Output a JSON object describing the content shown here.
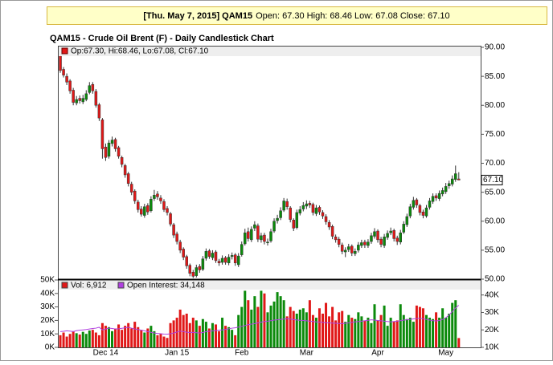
{
  "header": {
    "title": "[Thu. May 7, 2015] QAM15",
    "text": "Open: 67.30 High: 68.46 Low: 67.08 Close: 67.10"
  },
  "chart_data": [
    {
      "type": "candlestick",
      "title": "QAM15 - Crude Oil Brent (F) - Daily Candlestick Chart",
      "legend": "Op:67.30, Hi:68.46, Lo:67.08, Cl:67.10",
      "price_tag": "67.10",
      "up_color": "#0b8a0b",
      "down_color": "#e01818",
      "ylim": [
        50,
        90
      ],
      "yticks": [
        {
          "value": 50,
          "label": "50.00"
        },
        {
          "value": 55,
          "label": "55.00"
        },
        {
          "value": 60,
          "label": "60.00"
        },
        {
          "value": 65,
          "label": "65.00"
        },
        {
          "value": 70,
          "label": "70.00"
        },
        {
          "value": 75,
          "label": "75.00"
        },
        {
          "value": 80,
          "label": "80.00"
        },
        {
          "value": 85,
          "label": "85.00"
        },
        {
          "value": 90,
          "label": "90.00"
        }
      ],
      "grid": false,
      "open": [
        88.5,
        86.2,
        85.0,
        84.2,
        82.6,
        80.4,
        81.2,
        80.6,
        81.0,
        82.2,
        83.6,
        82.4,
        80.1,
        77.5,
        72.8,
        71.2,
        73.4,
        74.1,
        72.7,
        71.0,
        69.6,
        68.2,
        66.4,
        65.2,
        63.3,
        62.1,
        61.0,
        62.7,
        61.8,
        63.9,
        64.7,
        64.0,
        63.4,
        62.2,
        61.3,
        59.4,
        57.8,
        56.4,
        55.2,
        53.9,
        52.4,
        51.2,
        50.6,
        52.2,
        51.7,
        53.6,
        54.9,
        53.7,
        54.7,
        53.1,
        52.9,
        53.7,
        52.8,
        53.9,
        54.2,
        52.5,
        54.2,
        56.1,
        58.2,
        56.8,
        58.8,
        59.2,
        56.8,
        57.6,
        56.3,
        56.6,
        58.3,
        60.1,
        60.6,
        61.9,
        63.4,
        62.3,
        60.2,
        58.9,
        61.4,
        62.1,
        62.6,
        63.1,
        62.9,
        61.3,
        62.4,
        61.5,
        60.8,
        59.8,
        59.1,
        57.3,
        56.9,
        55.9,
        54.7,
        55.1,
        55.7,
        54.4,
        55.0,
        55.8,
        56.4,
        55.8,
        56.5,
        57.4,
        58.3,
        56.9,
        55.8,
        57.2,
        58.0,
        58.4,
        57.1,
        56.4,
        58.1,
        59.4,
        60.9,
        62.4,
        63.7,
        62.7,
        61.6,
        60.9,
        62.4,
        63.4,
        64.4,
        63.9,
        64.7,
        65.1,
        66.1,
        66.4,
        67.2,
        67.3
      ],
      "high": [
        89.0,
        86.6,
        85.5,
        84.5,
        83.0,
        81.6,
        81.7,
        81.8,
        82.6,
        84.0,
        84.0,
        82.8,
        80.4,
        77.8,
        73.4,
        74.0,
        74.6,
        74.4,
        73.0,
        71.3,
        69.9,
        68.5,
        66.8,
        65.5,
        63.7,
        62.6,
        63.0,
        63.1,
        64.3,
        65.4,
        65.2,
        64.5,
        63.8,
        62.6,
        61.6,
        59.7,
        58.2,
        56.8,
        55.5,
        54.2,
        52.7,
        51.6,
        52.5,
        52.6,
        54.0,
        55.3,
        55.2,
        55.0,
        55.0,
        53.5,
        54.1,
        54.0,
        54.3,
        54.6,
        54.5,
        54.5,
        56.5,
        58.7,
        58.9,
        59.1,
        60.0,
        59.6,
        58.0,
        58.0,
        57.0,
        58.7,
        60.5,
        61.1,
        62.4,
        64.0,
        63.9,
        62.6,
        60.5,
        62.0,
        62.6,
        63.3,
        63.6,
        63.5,
        63.2,
        62.8,
        62.7,
        61.9,
        61.2,
        60.2,
        59.4,
        57.7,
        57.3,
        56.3,
        55.5,
        56.1,
        56.0,
        55.3,
        56.4,
        56.8,
        56.8,
        56.9,
        58.0,
        58.8,
        58.6,
        57.3,
        57.8,
        58.4,
        58.9,
        58.7,
        57.5,
        58.5,
        60.0,
        61.3,
        63.0,
        64.2,
        64.0,
        63.0,
        62.0,
        62.8,
        64.0,
        64.8,
        64.8,
        65.3,
        65.8,
        66.6,
        67.0,
        67.9,
        69.6,
        68.46
      ],
      "low": [
        85.6,
        84.8,
        83.5,
        82.0,
        80.0,
        80.0,
        80.3,
        80.2,
        80.7,
        81.9,
        82.0,
        79.6,
        77.3,
        70.8,
        70.4,
        70.8,
        72.9,
        72.0,
        70.8,
        69.3,
        67.5,
        66.0,
        64.5,
        63.0,
        61.5,
        60.8,
        60.6,
        61.1,
        61.5,
        63.5,
        63.7,
        63.0,
        61.6,
        61.0,
        59.1,
        57.1,
        56.0,
        54.5,
        53.3,
        51.8,
        50.5,
        50.2,
        50.3,
        51.1,
        51.4,
        53.2,
        53.5,
        53.3,
        52.8,
        52.3,
        52.5,
        52.5,
        52.4,
        53.4,
        52.3,
        52.1,
        53.9,
        55.8,
        56.5,
        56.4,
        58.3,
        56.4,
        56.3,
        56.0,
        55.8,
        56.3,
        58.0,
        59.6,
        60.2,
        61.6,
        62.0,
        59.8,
        58.3,
        58.6,
        61.0,
        61.7,
        62.1,
        62.3,
        61.0,
        60.9,
        61.1,
        60.4,
        59.4,
        58.5,
        56.9,
        56.3,
        55.5,
        54.3,
        53.8,
        54.7,
        54.0,
        54.0,
        54.6,
        55.4,
        55.4,
        55.4,
        56.1,
        57.0,
        56.3,
        55.5,
        55.4,
        56.8,
        57.6,
        56.5,
        55.9,
        56.0,
        57.8,
        59.0,
        60.5,
        62.0,
        62.3,
        61.0,
        60.5,
        60.6,
        62.0,
        63.0,
        63.5,
        63.5,
        64.3,
        64.7,
        65.6,
        66.0,
        66.8,
        67.08
      ],
      "close": [
        86.0,
        85.2,
        84.0,
        82.5,
        80.5,
        81.0,
        80.8,
        81.2,
        82.0,
        83.4,
        82.5,
        80.0,
        77.8,
        72.5,
        71.0,
        73.5,
        74.0,
        72.5,
        71.2,
        69.8,
        68.0,
        66.5,
        65.0,
        63.5,
        62.0,
        61.2,
        62.5,
        61.6,
        63.8,
        64.5,
        64.2,
        63.5,
        62.0,
        61.5,
        59.5,
        57.6,
        56.5,
        55.0,
        53.8,
        52.3,
        51.0,
        50.5,
        52.0,
        51.6,
        53.5,
        54.8,
        53.9,
        54.5,
        53.2,
        52.8,
        53.6,
        52.9,
        53.8,
        54.1,
        52.8,
        54.0,
        56.0,
        58.0,
        57.0,
        58.6,
        59.4,
        56.9,
        57.5,
        56.5,
        56.4,
        58.2,
        60.0,
        60.5,
        61.8,
        63.5,
        62.5,
        60.3,
        58.8,
        61.5,
        62.0,
        62.7,
        63.0,
        62.8,
        61.5,
        62.3,
        61.6,
        60.9,
        59.9,
        59.0,
        57.4,
        56.8,
        56.0,
        54.8,
        55.0,
        55.6,
        54.5,
        54.8,
        55.9,
        56.3,
        55.9,
        56.4,
        57.5,
        58.2,
        56.8,
        56.0,
        57.3,
        57.9,
        58.3,
        57.0,
        56.5,
        58.0,
        59.5,
        60.8,
        62.5,
        63.6,
        62.8,
        61.5,
        61.0,
        62.3,
        63.5,
        64.3,
        64.0,
        64.8,
        65.3,
        66.0,
        66.5,
        67.3,
        68.2,
        67.1
      ]
    },
    {
      "type": "bar",
      "categories": [
        null,
        null,
        null,
        null,
        null,
        null,
        null,
        null,
        null,
        null,
        null,
        null,
        null,
        null,
        "Dec 14",
        null,
        null,
        null,
        null,
        null,
        null,
        null,
        null,
        null,
        null,
        null,
        null,
        null,
        null,
        null,
        null,
        null,
        null,
        null,
        null,
        null,
        "Jan 15",
        null,
        null,
        null,
        null,
        null,
        null,
        null,
        null,
        null,
        null,
        null,
        null,
        null,
        null,
        null,
        null,
        null,
        null,
        null,
        "Feb",
        null,
        null,
        null,
        null,
        null,
        null,
        null,
        null,
        null,
        null,
        null,
        null,
        null,
        null,
        null,
        null,
        null,
        null,
        null,
        "Mar",
        null,
        null,
        null,
        null,
        null,
        null,
        null,
        null,
        null,
        null,
        null,
        null,
        null,
        null,
        null,
        null,
        null,
        null,
        null,
        null,
        null,
        "Apr",
        null,
        null,
        null,
        null,
        null,
        null,
        null,
        null,
        null,
        null,
        null,
        null,
        null,
        null,
        null,
        null,
        null,
        null,
        null,
        null,
        "May",
        null,
        null,
        null,
        null
      ],
      "ylim": [
        0,
        50000
      ],
      "yticks": [
        {
          "value": 0,
          "label": "0K"
        },
        {
          "value": 10000,
          "label": "10K"
        },
        {
          "value": 20000,
          "label": "20K"
        },
        {
          "value": 30000,
          "label": "30K"
        },
        {
          "value": 40000,
          "label": "40K"
        },
        {
          "value": 50000,
          "label": "50K"
        }
      ],
      "y2lim": [
        10000,
        48600
      ],
      "y2ticks": [
        {
          "value": 10000,
          "label": "10K"
        },
        {
          "value": 20000,
          "label": "20K"
        },
        {
          "value": 30000,
          "label": "30K"
        },
        {
          "value": 40000,
          "label": "40K"
        }
      ],
      "series": [
        {
          "name": "Vol: 6,912",
          "color": "#e01818",
          "values": [
            9000,
            11000,
            8000,
            10000,
            12000,
            10500,
            9500,
            11500,
            10000,
            12500,
            13000,
            11000,
            9000,
            18000,
            16000,
            15000,
            12000,
            14000,
            17000,
            13000,
            16000,
            18000,
            14000,
            19000,
            15000,
            13000,
            11000,
            14000,
            16000,
            12000,
            9000,
            10000,
            8000,
            7000,
            18000,
            20000,
            22000,
            28000,
            24000,
            25000,
            18000,
            22000,
            20000,
            16000,
            21000,
            19000,
            14000,
            18000,
            17000,
            12000,
            22000,
            16000,
            15000,
            13000,
            9000,
            24000,
            30000,
            42000,
            35000,
            28000,
            38000,
            30000,
            42000,
            40000,
            26000,
            31000,
            34000,
            41000,
            38000,
            35000,
            23000,
            30000,
            27000,
            25000,
            28000,
            29000,
            26000,
            35000,
            24000,
            22000,
            29000,
            25000,
            33000,
            23000,
            30000,
            20000,
            26000,
            27000,
            19000,
            24000,
            22000,
            21000,
            26000,
            23000,
            20000,
            22000,
            18000,
            32000,
            20000,
            24000,
            31000,
            16000,
            22000,
            19000,
            20000,
            32000,
            24000,
            21000,
            22000,
            19000,
            31000,
            30000,
            29000,
            24000,
            22000,
            21000,
            26000,
            22000,
            29000,
            22000,
            25000,
            33000,
            35000,
            6912
          ]
        },
        {
          "name": "Open Interest: 34,148",
          "color": "#b040e0",
          "axis": "y2",
          "values": [
            19000,
            19200,
            19500,
            19300,
            19000,
            19600,
            19800,
            20000,
            20200,
            20500,
            20800,
            21000,
            21500,
            20000,
            20500,
            21000,
            20800,
            20500,
            20600,
            20900,
            21200,
            21500,
            21000,
            20500,
            20200,
            19800,
            19500,
            19000,
            18600,
            18200,
            18000,
            17800,
            17600,
            17500,
            17800,
            18200,
            18800,
            19300,
            19000,
            18700,
            18500,
            18600,
            18400,
            18200,
            18500,
            19000,
            19200,
            19400,
            19600,
            19800,
            20000,
            20300,
            20600,
            21000,
            21200,
            21600,
            22000,
            22500,
            23000,
            23300,
            23600,
            24000,
            24400,
            24800,
            25000,
            25300,
            25600,
            25800,
            26000,
            26200,
            26400,
            26200,
            25900,
            25700,
            25500,
            25400,
            25200,
            25000,
            24800,
            24600,
            24500,
            24300,
            24100,
            24000,
            23900,
            23800,
            23700,
            23600,
            23800,
            24000,
            24300,
            24600,
            24800,
            25000,
            25200,
            25500,
            25800,
            25600,
            25400,
            25200,
            25000,
            24800,
            24600,
            24800,
            25000,
            25300,
            25600,
            25800,
            26000,
            26300,
            26500,
            26700,
            26400,
            26000,
            25600,
            25300,
            25100,
            25400,
            26000,
            27000,
            28500,
            30500,
            32500,
            34148
          ]
        }
      ]
    }
  ]
}
